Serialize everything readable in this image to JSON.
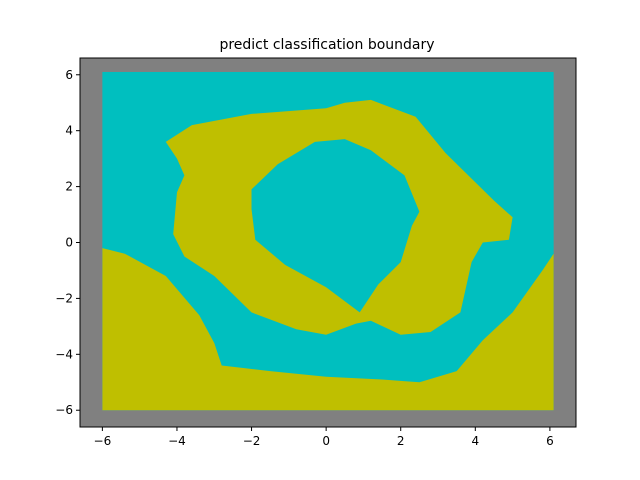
{
  "chart_data": {
    "type": "heatmap",
    "title": "predict classification boundary",
    "xlabel": "",
    "ylabel": "",
    "xlim": [
      -6.6,
      6.7
    ],
    "ylim": [
      -6.6,
      6.6
    ],
    "grid_extent": {
      "x": [
        -6.0,
        6.1
      ],
      "y": [
        -6.0,
        6.1
      ]
    },
    "x_ticks": [
      -6,
      -4,
      -2,
      0,
      2,
      4,
      6
    ],
    "y_ticks": [
      -6,
      -4,
      -2,
      0,
      2,
      4,
      6
    ],
    "x_tick_labels": [
      "−6",
      "−4",
      "−2",
      "0",
      "2",
      "4",
      "6"
    ],
    "y_tick_labels": [
      "−6",
      "−4",
      "−2",
      "0",
      "2",
      "4",
      "6"
    ],
    "background_color": "#808080",
    "class_colors": {
      "class_0": "#00bfbf",
      "class_1": "#bfbf00"
    },
    "regions": [
      {
        "class": "class_1",
        "name": "ring",
        "outer": [
          [
            -4.3,
            3.6
          ],
          [
            -3.6,
            4.2
          ],
          [
            -2.0,
            4.6
          ],
          [
            0,
            4.8
          ],
          [
            0.5,
            5.0
          ],
          [
            1.2,
            5.1
          ],
          [
            2.4,
            4.5
          ],
          [
            3.2,
            3.2
          ],
          [
            4.5,
            1.5
          ],
          [
            5.0,
            0.9
          ],
          [
            4.9,
            0.1
          ],
          [
            4.2,
            0.0
          ],
          [
            3.9,
            -0.7
          ],
          [
            3.6,
            -2.5
          ],
          [
            2.8,
            -3.2
          ],
          [
            2.0,
            -3.3
          ],
          [
            1.2,
            -2.8
          ],
          [
            0.8,
            -2.9
          ],
          [
            0,
            -3.3
          ],
          [
            -0.8,
            -3.1
          ],
          [
            -2.0,
            -2.5
          ],
          [
            -3.0,
            -1.2
          ],
          [
            -3.8,
            -0.5
          ],
          [
            -4.1,
            0.3
          ],
          [
            -4.0,
            1.8
          ],
          [
            -3.8,
            2.4
          ],
          [
            -4.0,
            3.0
          ]
        ],
        "hole": [
          [
            -2.0,
            1.9
          ],
          [
            -1.3,
            2.8
          ],
          [
            -0.3,
            3.6
          ],
          [
            0.5,
            3.7
          ],
          [
            1.2,
            3.3
          ],
          [
            2.1,
            2.4
          ],
          [
            2.5,
            1.1
          ],
          [
            2.3,
            0.6
          ],
          [
            2.0,
            -0.7
          ],
          [
            1.4,
            -1.5
          ],
          [
            0.9,
            -2.5
          ],
          [
            0.0,
            -1.6
          ],
          [
            -1.1,
            -0.8
          ],
          [
            -1.9,
            0.1
          ],
          [
            -2.0,
            1.2
          ]
        ]
      },
      {
        "class": "class_1",
        "name": "bottom-band",
        "polygon": [
          [
            -6.0,
            -0.2
          ],
          [
            -5.4,
            -0.4
          ],
          [
            -4.3,
            -1.2
          ],
          [
            -3.4,
            -2.6
          ],
          [
            -3.0,
            -3.6
          ],
          [
            -2.8,
            -4.4
          ],
          [
            -1.5,
            -4.6
          ],
          [
            0,
            -4.8
          ],
          [
            1.5,
            -4.9
          ],
          [
            2.5,
            -5.0
          ],
          [
            3.5,
            -4.6
          ],
          [
            4.2,
            -3.5
          ],
          [
            5.0,
            -2.5
          ],
          [
            5.8,
            -1.0
          ],
          [
            6.1,
            -0.4
          ],
          [
            6.1,
            -6.0
          ],
          [
            -6.0,
            -6.0
          ]
        ]
      }
    ],
    "legend": null
  }
}
